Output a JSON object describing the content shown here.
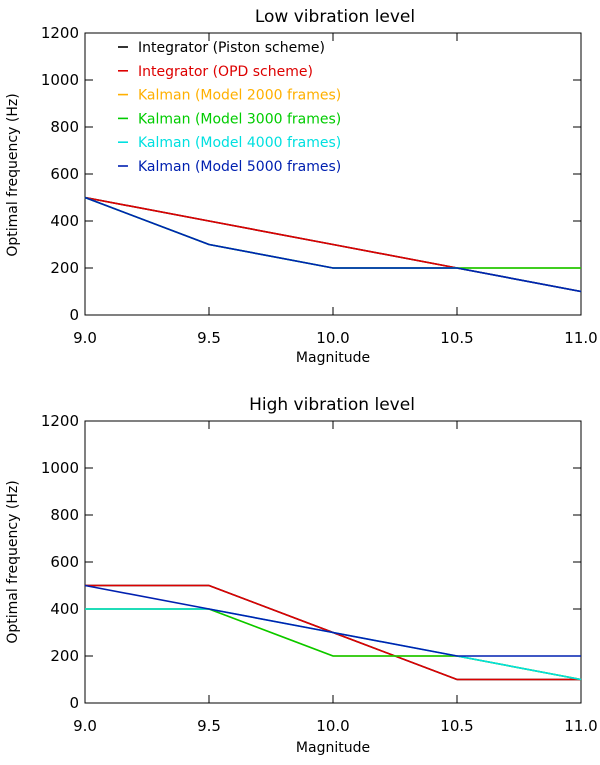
{
  "chart_data": [
    {
      "type": "line",
      "title": "Low vibration level",
      "xlabel": "Magnitude",
      "ylabel": "Optimal frequency (Hz)",
      "xlim": [
        9.0,
        11.0
      ],
      "ylim": [
        0,
        1200
      ],
      "xticks": [
        "9.0",
        "9.5",
        "10.0",
        "10.5",
        "11.0"
      ],
      "yticks": [
        "0",
        "200",
        "400",
        "600",
        "800",
        "1000",
        "1200"
      ],
      "legend_position": "top-left",
      "show_legend": true,
      "series": [
        {
          "name": "Integrator (Piston scheme)",
          "color": "#000000",
          "x": [
            9.0,
            9.5,
            10.0,
            10.5,
            11.0
          ],
          "y": [
            500,
            400,
            300,
            200,
            100
          ]
        },
        {
          "name": "Integrator (OPD scheme)",
          "color": "#dd0000",
          "x": [
            9.0,
            9.5,
            10.0,
            10.5,
            11.0
          ],
          "y": [
            500,
            400,
            300,
            200,
            100
          ]
        },
        {
          "name": "Kalman (Model 2000 frames)",
          "color": "#ffb000",
          "x": [
            9.0,
            9.5,
            10.0,
            10.5,
            11.0
          ],
          "y": [
            500,
            300,
            200,
            200,
            200
          ]
        },
        {
          "name": "Kalman (Model 3000 frames)",
          "color": "#00cc00",
          "x": [
            9.0,
            9.5,
            10.0,
            10.5,
            11.0
          ],
          "y": [
            500,
            300,
            200,
            200,
            200
          ]
        },
        {
          "name": "Kalman (Model 4000 frames)",
          "color": "#00e0e0",
          "x": [
            9.0,
            9.5,
            10.0,
            10.5,
            11.0
          ],
          "y": [
            500,
            300,
            200,
            200,
            100
          ]
        },
        {
          "name": "Kalman (Model 5000 frames)",
          "color": "#0020b0",
          "x": [
            9.0,
            9.5,
            10.0,
            10.5,
            11.0
          ],
          "y": [
            500,
            300,
            200,
            200,
            100
          ]
        }
      ]
    },
    {
      "type": "line",
      "title": "High vibration level",
      "xlabel": "Magnitude",
      "ylabel": "Optimal frequency (Hz)",
      "xlim": [
        9.0,
        11.0
      ],
      "ylim": [
        0,
        1200
      ],
      "xticks": [
        "9.0",
        "9.5",
        "10.0",
        "10.5",
        "11.0"
      ],
      "yticks": [
        "0",
        "200",
        "400",
        "600",
        "800",
        "1000",
        "1200"
      ],
      "show_legend": false,
      "series": [
        {
          "name": "Integrator (Piston scheme)",
          "color": "#000000",
          "x": [
            9.0,
            9.5,
            10.0,
            10.5,
            11.0
          ],
          "y": [
            500,
            500,
            300,
            100,
            100
          ]
        },
        {
          "name": "Integrator (OPD scheme)",
          "color": "#dd0000",
          "x": [
            9.0,
            9.5,
            10.0,
            10.5,
            11.0
          ],
          "y": [
            500,
            500,
            300,
            100,
            100
          ]
        },
        {
          "name": "Kalman (Model 2000 frames)",
          "color": "#ffb000",
          "x": [
            9.0,
            9.5,
            10.0,
            10.5,
            11.0
          ],
          "y": [
            400,
            400,
            200,
            200,
            100
          ]
        },
        {
          "name": "Kalman (Model 3000 frames)",
          "color": "#00cc00",
          "x": [
            9.0,
            9.5,
            10.0,
            10.5,
            11.0
          ],
          "y": [
            400,
            400,
            200,
            200,
            100
          ]
        },
        {
          "name": "Kalman (Model 4000 frames)",
          "color": "#00e0e0",
          "x": [
            9.0,
            9.5,
            10.0,
            10.5,
            11.0
          ],
          "y": [
            400,
            400,
            300,
            200,
            100
          ]
        },
        {
          "name": "Kalman (Model 5000 frames)",
          "color": "#0020b0",
          "x": [
            9.0,
            9.5,
            10.0,
            10.5,
            11.0
          ],
          "y": [
            500,
            400,
            300,
            200,
            200
          ]
        }
      ]
    }
  ]
}
